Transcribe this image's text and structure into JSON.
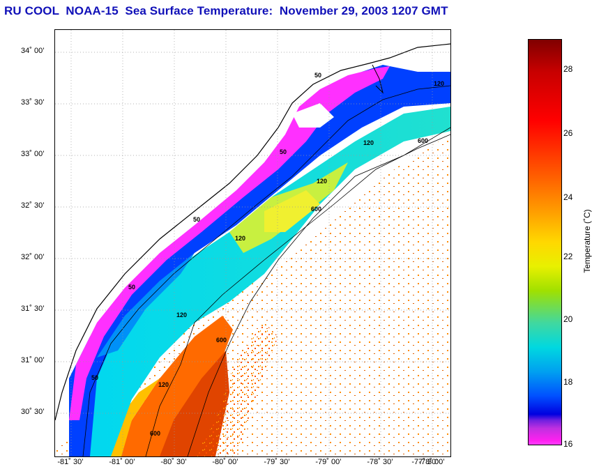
{
  "title": "RU COOL  NOAA-15  Sea Surface Temperature:  November 29, 2003 1207 GMT",
  "latitude_labels": [
    "34˚ 00’",
    "33˚ 30’",
    "33˚ 00’",
    "32˚ 30’",
    "32˚ 00’",
    "31˚ 30’",
    "31˚ 00’",
    "30˚ 30’"
  ],
  "longitude_labels": [
    "-81˚ 30’",
    "-81˚ 00’",
    "-80˚ 30’",
    "-80˚ 00’",
    "-79˚ 30’",
    "-79˚ 00’",
    "-78˚ 30’",
    "-78˚ 00’",
    "-77˚ 30’"
  ],
  "colorbar": {
    "label": "Temperature (˚C)",
    "ticks": [
      "28",
      "26",
      "24",
      "22",
      "20",
      "18",
      "16"
    ]
  },
  "contour_labels": [
    "50",
    "50",
    "50",
    "50",
    "50",
    "120",
    "120",
    "120",
    "120",
    "120",
    "120",
    "600",
    "600",
    "600",
    "600"
  ],
  "colors": {
    "title": "#1010b8",
    "land": "#ffffff",
    "coast_cold": "#ff30ff",
    "nearshore": "#0030f0",
    "shelf": "#00c8f0",
    "midshelf": "#d0f040",
    "warm": "#ff7000"
  }
}
